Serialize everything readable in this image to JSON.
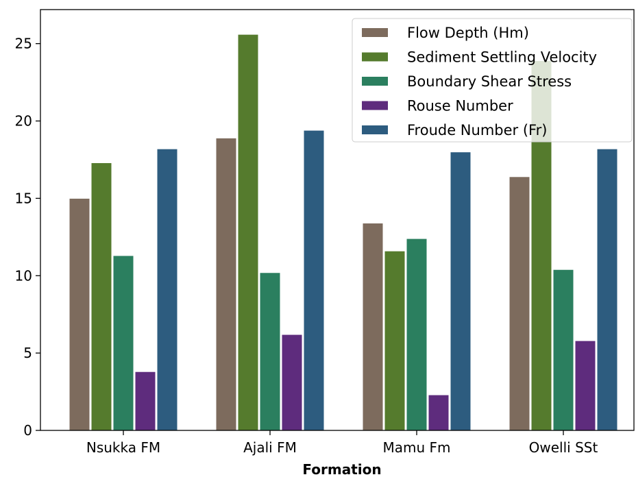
{
  "chart_data": {
    "type": "bar",
    "title": "",
    "xlabel": "Formation",
    "ylabel": "",
    "categories": [
      "Nsukka FM",
      "Ajali FM",
      "Mamu Fm",
      "Owelli SSt"
    ],
    "series": [
      {
        "name": "Flow Depth (Hm)",
        "color": "#7d6b5d",
        "values": [
          15.0,
          18.9,
          13.4,
          16.4
        ]
      },
      {
        "name": "Sediment Settling Velocity",
        "color": "#557b2d",
        "values": [
          17.3,
          25.6,
          11.6,
          23.9
        ]
      },
      {
        "name": "Boundary Shear Stress",
        "color": "#2b7f5f",
        "values": [
          11.3,
          10.2,
          12.4,
          10.4
        ]
      },
      {
        "name": "Rouse Number",
        "color": "#5e2c7d",
        "values": [
          3.8,
          6.2,
          2.3,
          5.8
        ]
      },
      {
        "name": "Froude Number (Fr)",
        "color": "#2d5c7f",
        "values": [
          18.2,
          19.4,
          18.0,
          18.2
        ]
      }
    ],
    "ylim": [
      0,
      27.2
    ],
    "yticks": [
      0,
      5,
      10,
      15,
      20,
      25
    ],
    "grid": false,
    "legend_position": "top-right"
  }
}
